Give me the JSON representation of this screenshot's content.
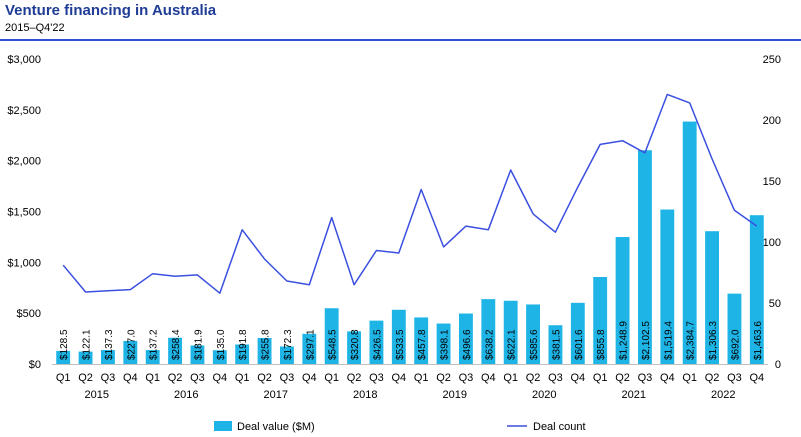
{
  "header": {
    "title": "Venture financing in Australia",
    "subtitle": "2015–Q4'22"
  },
  "chart_data": {
    "type": "bar",
    "categories": [
      "Q1",
      "Q2",
      "Q3",
      "Q4",
      "Q1",
      "Q2",
      "Q3",
      "Q4",
      "Q1",
      "Q2",
      "Q3",
      "Q4",
      "Q1",
      "Q2",
      "Q3",
      "Q4",
      "Q1",
      "Q2",
      "Q3",
      "Q4",
      "Q1",
      "Q2",
      "Q3",
      "Q4",
      "Q1",
      "Q2",
      "Q3",
      "Q4",
      "Q1",
      "Q2",
      "Q3",
      "Q4"
    ],
    "years": [
      {
        "label": "2015",
        "start": 0,
        "end": 3
      },
      {
        "label": "2016",
        "start": 4,
        "end": 7
      },
      {
        "label": "2017",
        "start": 8,
        "end": 11
      },
      {
        "label": "2018",
        "start": 12,
        "end": 15
      },
      {
        "label": "2019",
        "start": 16,
        "end": 19
      },
      {
        "label": "2020",
        "start": 20,
        "end": 23
      },
      {
        "label": "2021",
        "start": 24,
        "end": 27
      },
      {
        "label": "2022",
        "start": 28,
        "end": 31
      }
    ],
    "series": [
      {
        "name": "Deal value ($M)",
        "type": "bar",
        "axis": "left",
        "color": "#1eb4e6",
        "values": [
          128.5,
          122.1,
          137.3,
          227.0,
          137.2,
          258.4,
          181.9,
          135.0,
          191.8,
          255.8,
          172.3,
          297.1,
          548.5,
          320.8,
          426.5,
          533.5,
          457.8,
          398.1,
          496.6,
          638.2,
          622.1,
          585.6,
          381.5,
          601.6,
          855.8,
          1248.9,
          2102.5,
          1519.4,
          2384.7,
          1306.3,
          692.0,
          1463.6
        ],
        "labels": [
          "$128.5",
          "$122.1",
          "$137.3",
          "$227.0",
          "$137.2",
          "$258.4",
          "$181.9",
          "$135.0",
          "$191.8",
          "$255.8",
          "$172.3",
          "$297.1",
          "$548.5",
          "$320.8",
          "$426.5",
          "$533.5",
          "$457.8",
          "$398.1",
          "$496.6",
          "$638.2",
          "$622.1",
          "$585.6",
          "$381.5",
          "$601.6",
          "$855.8",
          "$1,248.9",
          "$2,102.5",
          "$1,519.4",
          "$2,384.7",
          "$1,306.3",
          "$692.0",
          "$1,463.6"
        ]
      },
      {
        "name": "Deal count",
        "type": "line",
        "axis": "right",
        "color": "#3b4fe0",
        "values": [
          81,
          59,
          60,
          61,
          74,
          72,
          73,
          58,
          110,
          86,
          68,
          65,
          120,
          65,
          93,
          91,
          143,
          96,
          113,
          110,
          159,
          123,
          108,
          145,
          180,
          183,
          173,
          221,
          214,
          168,
          126,
          113
        ]
      }
    ],
    "y_left": {
      "ticks": [
        "$0",
        "$500",
        "$1,000",
        "$1,500",
        "$2,000",
        "$2,500",
        "$3,000"
      ],
      "ylim": [
        0,
        3000
      ]
    },
    "y_right": {
      "ticks": [
        "0",
        "50",
        "100",
        "150",
        "200",
        "250"
      ],
      "ylim": [
        0,
        250
      ]
    },
    "legend": [
      "Deal value ($M)",
      "Deal count"
    ],
    "legend_position": "bottom"
  }
}
